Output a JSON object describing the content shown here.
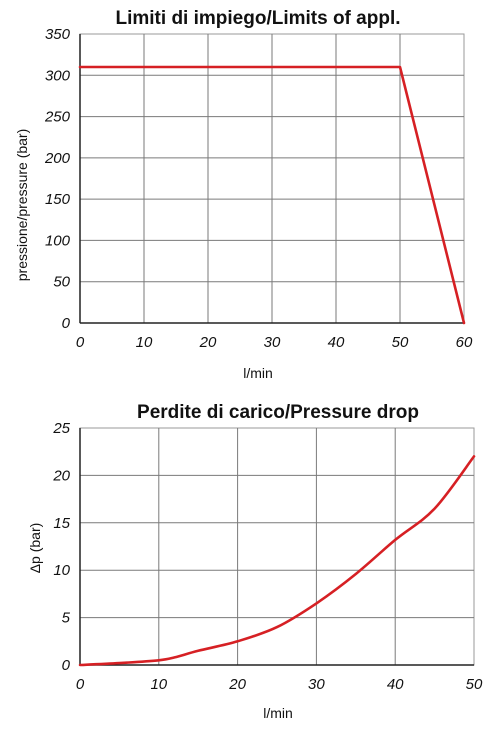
{
  "chart_data": [
    {
      "type": "line",
      "title": "Limiti di impiego/Limits of appl.",
      "xlabel": "l/min",
      "ylabel": "pressione/pressure (bar)",
      "xlim": [
        0,
        60
      ],
      "ylim": [
        0,
        350
      ],
      "xticks": [
        "0",
        "10",
        "20",
        "30",
        "40",
        "50",
        "60"
      ],
      "yticks": [
        "0",
        "50",
        "100",
        "150",
        "200",
        "250",
        "300",
        "350"
      ],
      "grid": true,
      "legend": "none",
      "series": [
        {
          "color": "#d62024",
          "x": [
            0,
            50,
            60
          ],
          "y": [
            310,
            310,
            0
          ]
        }
      ]
    },
    {
      "type": "line",
      "title": "Perdite di carico/Pressure drop",
      "xlabel": "l/min",
      "ylabel": "Δp (bar)",
      "xlim": [
        0,
        50
      ],
      "ylim": [
        0,
        25
      ],
      "xticks": [
        "0",
        "10",
        "20",
        "30",
        "40",
        "50"
      ],
      "yticks": [
        "0",
        "5",
        "10",
        "15",
        "20",
        "25"
      ],
      "grid": true,
      "legend": "none",
      "series": [
        {
          "color": "#d62024",
          "x": [
            0,
            5,
            10,
            12,
            15,
            20,
            25,
            30,
            35,
            40,
            45,
            50
          ],
          "y": [
            0,
            0.2,
            0.5,
            0.8,
            1.5,
            2.5,
            4.0,
            6.5,
            9.6,
            13.2,
            16.5,
            22.0
          ]
        }
      ]
    }
  ]
}
